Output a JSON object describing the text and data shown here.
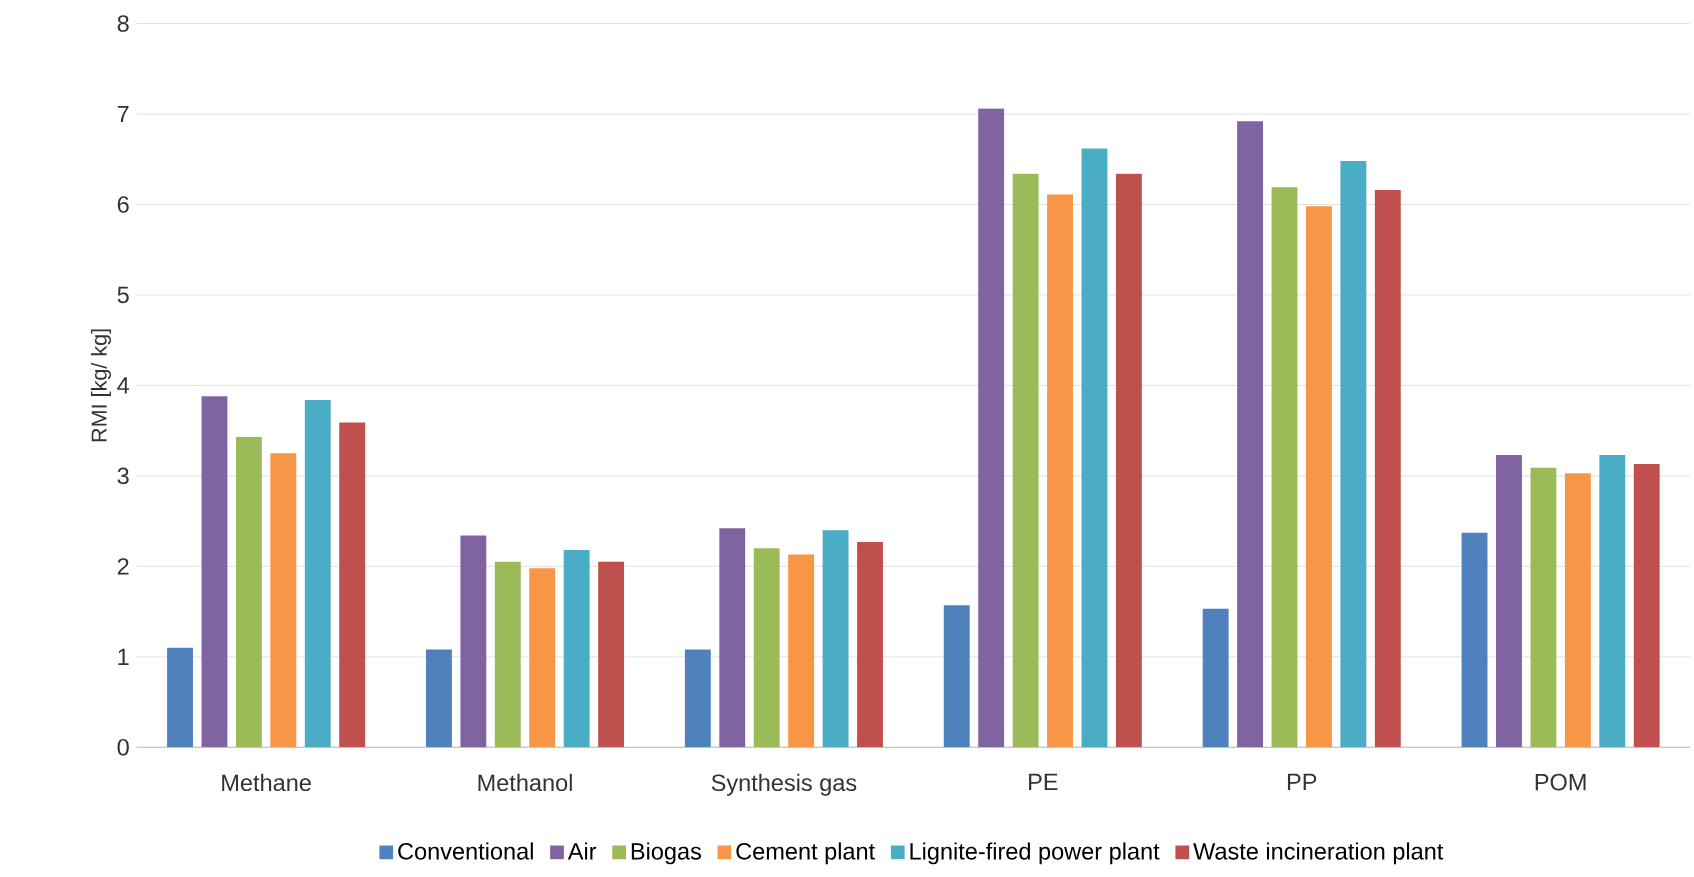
{
  "chart_data": {
    "type": "bar",
    "ylabel": "RMI [kg/ kg]",
    "categories": [
      "Methane",
      "Methanol",
      "Synthesis gas",
      "PE",
      "PP",
      "POM"
    ],
    "series": [
      {
        "name": "Conventional",
        "color": "#4f81bd",
        "values": [
          1.1,
          1.08,
          1.08,
          1.57,
          1.53,
          2.37
        ]
      },
      {
        "name": "Air",
        "color": "#8064a2",
        "values": [
          3.88,
          2.34,
          2.42,
          7.06,
          6.92,
          3.23
        ]
      },
      {
        "name": "Biogas",
        "color": "#9bbb59",
        "values": [
          3.43,
          2.05,
          2.2,
          6.34,
          6.19,
          3.09
        ]
      },
      {
        "name": "Cement plant",
        "color": "#f79646",
        "values": [
          3.25,
          1.98,
          2.13,
          6.11,
          5.98,
          3.03
        ]
      },
      {
        "name": "Lignite-fired power plant",
        "color": "#4bacc6",
        "values": [
          3.84,
          2.18,
          2.4,
          6.62,
          6.48,
          3.23
        ]
      },
      {
        "name": "Waste incineration plant",
        "color": "#c0504d",
        "values": [
          3.59,
          2.05,
          2.27,
          6.34,
          6.16,
          3.13
        ]
      }
    ],
    "ylim": [
      0,
      8
    ],
    "yticks": [
      0,
      1,
      2,
      3,
      4,
      5,
      6,
      7,
      8
    ],
    "grid": "y",
    "legend": "bottom"
  }
}
